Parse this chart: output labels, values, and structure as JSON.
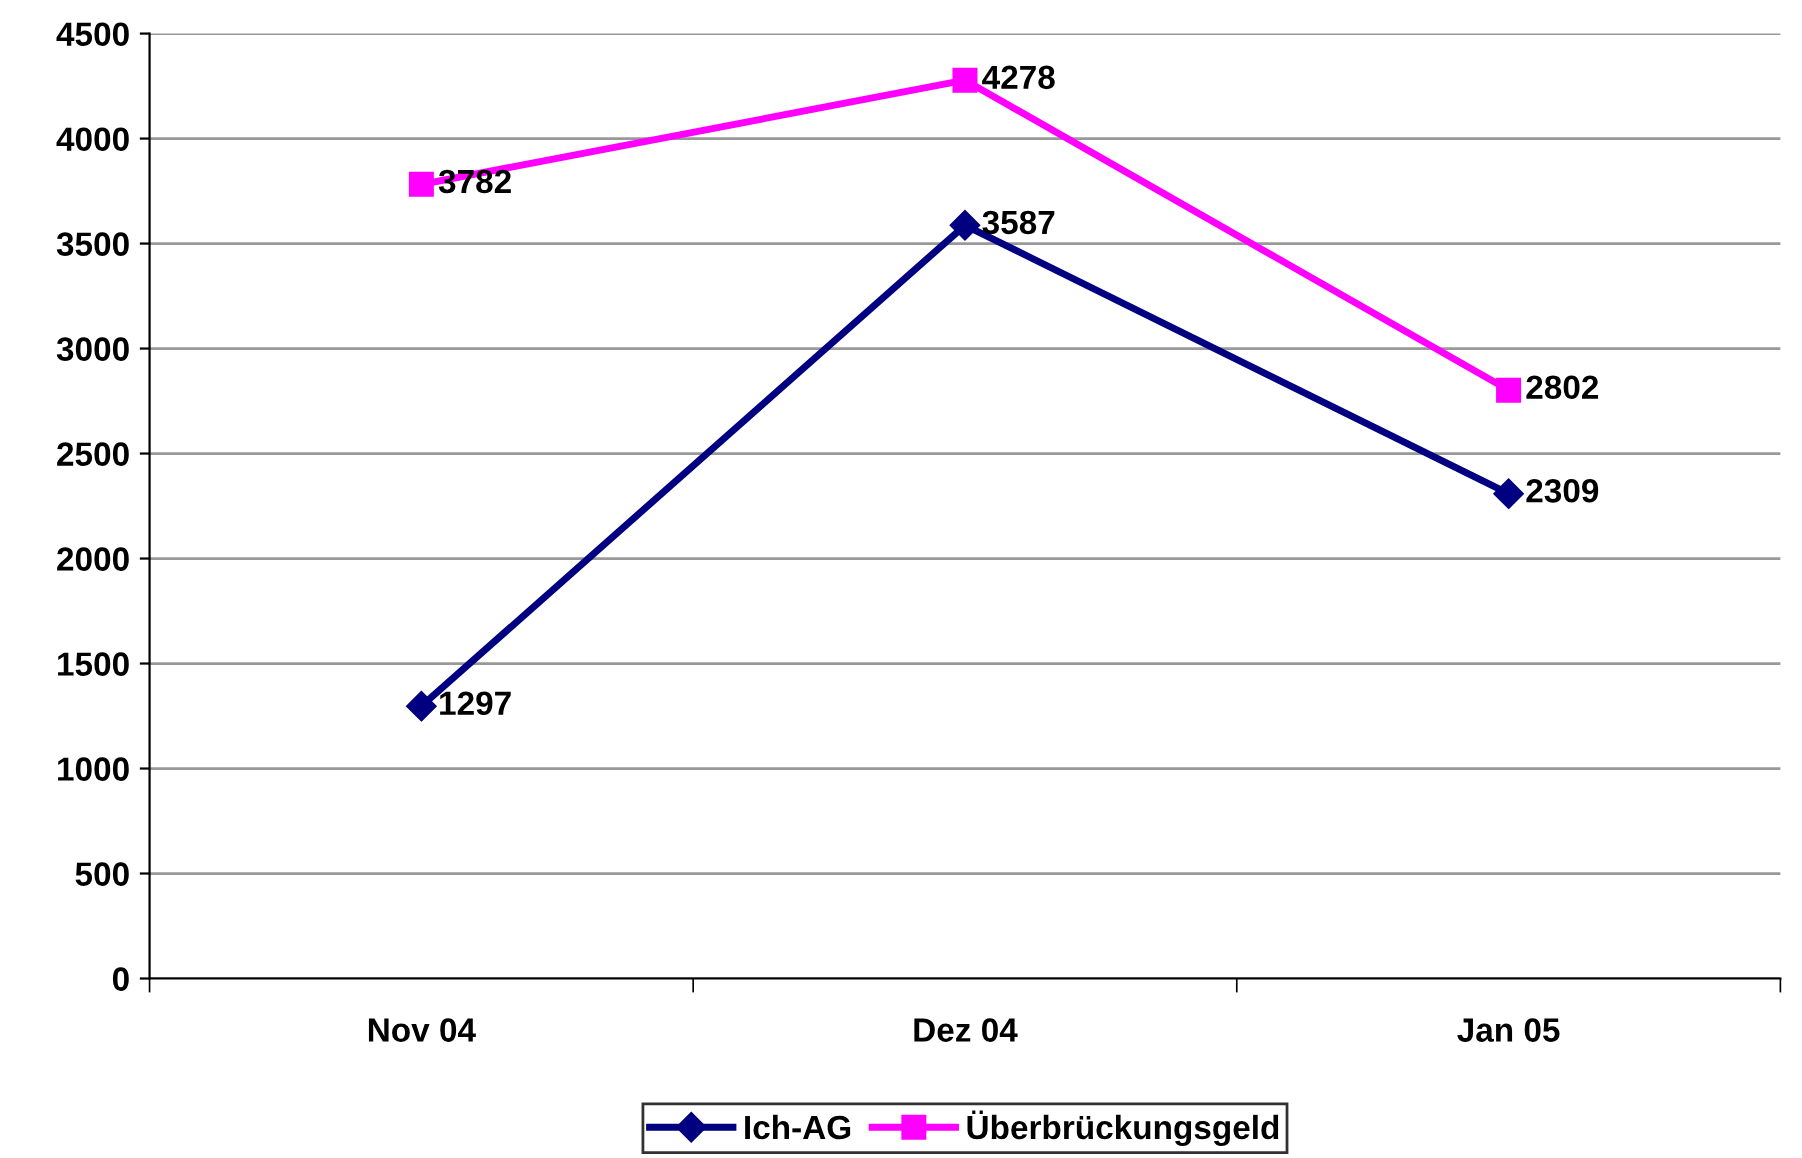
{
  "chart_data": {
    "type": "line",
    "categories": [
      "Nov 04",
      "Dez 04",
      "Jan 05"
    ],
    "series": [
      {
        "name": "Ich-AG",
        "color": "#000080",
        "marker": "diamond",
        "values": [
          1297,
          3587,
          2309
        ]
      },
      {
        "name": "Überbrückungsgeld",
        "color": "#ff00ff",
        "marker": "square",
        "values": [
          3782,
          4278,
          2802
        ]
      }
    ],
    "ylim": [
      0,
      4500
    ],
    "yticks": [
      0,
      500,
      1000,
      1500,
      2000,
      2500,
      3000,
      3500,
      4000,
      4500
    ],
    "grid": "y",
    "legend": "bottom",
    "data_labels": true,
    "line_style": "solid"
  }
}
